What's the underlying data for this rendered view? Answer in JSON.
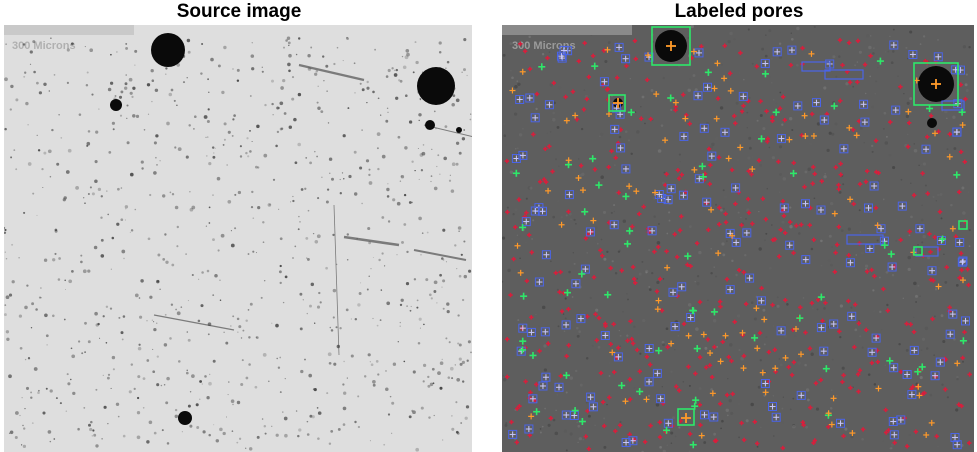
{
  "titles": {
    "left": "Source image",
    "right": "Labeled pores"
  },
  "scale_bar": {
    "text": "300 Microns"
  },
  "colors": {
    "source_background": "#dedede",
    "labeled_background": "#5e5e5e",
    "pore_fill": "#0a0a0a",
    "marker_red": "#d81e3c",
    "marker_blue": "#4a64e8",
    "marker_green": "#2ee86a",
    "marker_orange": "#ff9a2a",
    "box_green": "#2ee86a"
  },
  "icons": {
    "cross_marker": "plus-shaped centroid marker"
  }
}
